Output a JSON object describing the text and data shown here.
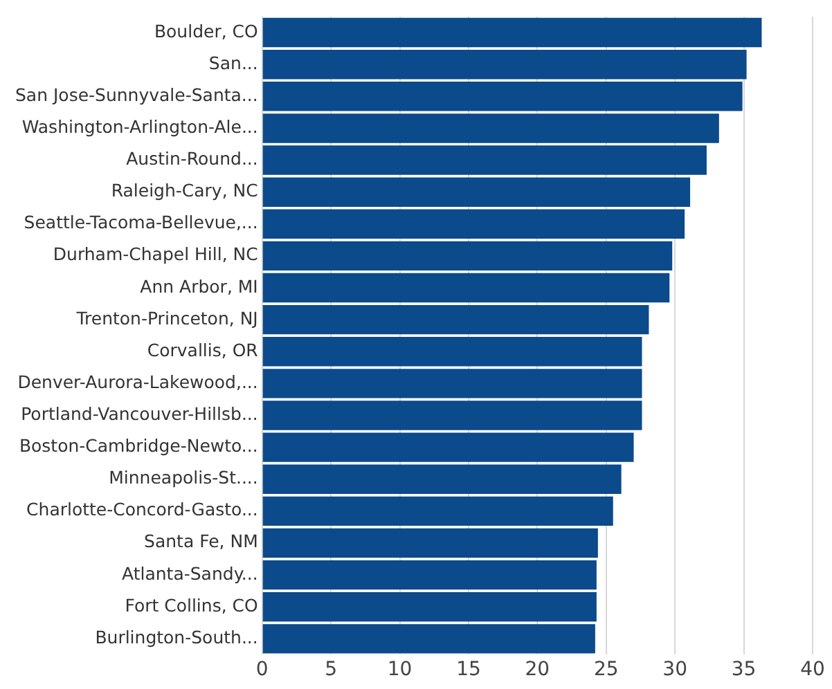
{
  "chart_data": {
    "type": "bar",
    "orientation": "horizontal",
    "categories": [
      "Boulder, CO",
      "San...",
      "San Jose-Sunnyvale-Santa...",
      "Washington-Arlington-Ale...",
      "Austin-Round...",
      "Raleigh-Cary, NC",
      "Seattle-Tacoma-Bellevue,...",
      "Durham-Chapel Hill, NC",
      "Ann Arbor, MI",
      "Trenton-Princeton, NJ",
      "Corvallis, OR",
      "Denver-Aurora-Lakewood,...",
      "Portland-Vancouver-Hillsb...",
      "Boston-Cambridge-Newto...",
      "Minneapolis-St....",
      "Charlotte-Concord-Gasto...",
      "Santa Fe, NM",
      "Atlanta-Sandy...",
      "Fort Collins, CO",
      "Burlington-South..."
    ],
    "values": [
      36.3,
      35.2,
      34.9,
      33.2,
      32.3,
      31.1,
      30.7,
      29.8,
      29.6,
      28.1,
      27.6,
      27.6,
      27.6,
      27.0,
      26.1,
      25.5,
      24.4,
      24.3,
      24.3,
      24.2
    ],
    "color": "#0b4a8b",
    "xlim": [
      0,
      40
    ],
    "xticks": [
      0,
      5,
      10,
      15,
      20,
      25,
      30,
      35,
      40
    ],
    "grid": "x"
  }
}
